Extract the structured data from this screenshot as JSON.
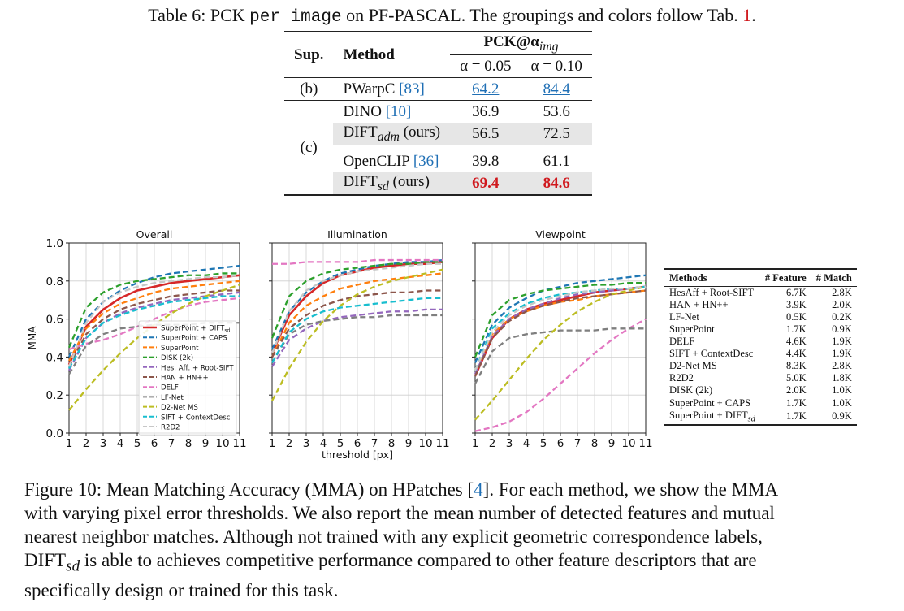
{
  "table_caption": {
    "prefix": "Table 6: PCK ",
    "mono": "per image",
    "middle": " on PF-PASCAL. The groupings and colors follow Tab. ",
    "ref": "1",
    "suffix": "."
  },
  "pck_table": {
    "col_sup": "Sup.",
    "col_method": "Method",
    "col_group": "PCK@α",
    "col_group_sub": "img",
    "alpha1": "α = 0.05",
    "alpha2": "α = 0.10",
    "rows": [
      {
        "sup": "(b)",
        "name": "PWarpC ",
        "ref": "[83]",
        "v1": "64.2",
        "v2": "84.4"
      },
      {
        "sup": "(c)",
        "name": "DINO ",
        "ref": "[10]",
        "v1": "36.9",
        "v2": "53.6"
      },
      {
        "name": "DIFT",
        "sub": "adm",
        "suffix": " (ours)",
        "v1": "56.5",
        "v2": "72.5"
      },
      {
        "name": "OpenCLIP ",
        "ref": "[36]",
        "v1": "39.8",
        "v2": "61.1"
      },
      {
        "name": "DIFT",
        "sub": "sd",
        "suffix": " (ours)",
        "v1": "69.4",
        "v2": "84.6"
      }
    ]
  },
  "figure": {
    "ylabel": "MMA",
    "xlabel": "threshold [px]",
    "yticks": [
      "0.0",
      "0.2",
      "0.4",
      "0.6",
      "0.8",
      "1.0"
    ],
    "xticks": [
      "1",
      "2",
      "3",
      "4",
      "5",
      "6",
      "7",
      "8",
      "9",
      "10",
      "11"
    ],
    "panel_titles": [
      "Overall",
      "Illumination",
      "Viewpoint"
    ]
  },
  "chart_data": [
    {
      "type": "line",
      "title": "Overall",
      "xlabel": "",
      "ylabel": "MMA",
      "x": [
        1,
        2,
        3,
        4,
        5,
        6,
        7,
        8,
        9,
        10,
        11
      ],
      "ylim": [
        0,
        1
      ],
      "grid": true,
      "legend": "lower-right",
      "series": [
        {
          "name": "SuperPoint + DIFTsd",
          "color": "#d62728",
          "values": [
            0.36,
            0.56,
            0.65,
            0.71,
            0.75,
            0.77,
            0.79,
            0.8,
            0.81,
            0.82,
            0.83
          ]
        },
        {
          "name": "SuperPoint + CAPS",
          "color": "#1f77b4",
          "values": [
            0.4,
            0.6,
            0.69,
            0.75,
            0.79,
            0.82,
            0.84,
            0.85,
            0.86,
            0.87,
            0.88
          ]
        },
        {
          "name": "SuperPoint",
          "color": "#ff7f0e",
          "values": [
            0.38,
            0.55,
            0.63,
            0.68,
            0.71,
            0.74,
            0.76,
            0.77,
            0.78,
            0.79,
            0.8
          ]
        },
        {
          "name": "DISK (2k)",
          "color": "#2ca02c",
          "values": [
            0.45,
            0.66,
            0.74,
            0.78,
            0.8,
            0.81,
            0.82,
            0.83,
            0.83,
            0.84,
            0.84
          ]
        },
        {
          "name": "Hes. Aff. + Root-SIFT",
          "color": "#9467bd",
          "values": [
            0.33,
            0.5,
            0.58,
            0.63,
            0.66,
            0.68,
            0.7,
            0.71,
            0.72,
            0.73,
            0.74
          ]
        },
        {
          "name": "HAN + HN++",
          "color": "#8c564b",
          "values": [
            0.35,
            0.52,
            0.6,
            0.65,
            0.68,
            0.7,
            0.72,
            0.73,
            0.74,
            0.75,
            0.75
          ]
        },
        {
          "name": "DELF",
          "color": "#e377c2",
          "values": [
            0.44,
            0.47,
            0.49,
            0.52,
            0.56,
            0.6,
            0.64,
            0.67,
            0.69,
            0.7,
            0.71
          ]
        },
        {
          "name": "LF-Net",
          "color": "#7f7f7f",
          "values": [
            0.31,
            0.46,
            0.52,
            0.55,
            0.56,
            0.57,
            0.57,
            0.57,
            0.58,
            0.58,
            0.58
          ]
        },
        {
          "name": "D2-Net MS",
          "color": "#bcbd22",
          "values": [
            0.12,
            0.23,
            0.33,
            0.42,
            0.5,
            0.57,
            0.63,
            0.68,
            0.72,
            0.75,
            0.78
          ]
        },
        {
          "name": "SIFT + ContextDesc",
          "color": "#17becf",
          "values": [
            0.34,
            0.5,
            0.58,
            0.62,
            0.65,
            0.67,
            0.69,
            0.7,
            0.71,
            0.72,
            0.72
          ]
        },
        {
          "name": "R2D2",
          "color": "#c7c7c7",
          "values": [
            0.35,
            0.58,
            0.69,
            0.74,
            0.77,
            0.79,
            0.8,
            0.81,
            0.82,
            0.82,
            0.83
          ]
        }
      ]
    },
    {
      "type": "line",
      "title": "Illumination",
      "xlabel": "threshold [px]",
      "ylabel": "",
      "x": [
        1,
        2,
        3,
        4,
        5,
        6,
        7,
        8,
        9,
        10,
        11
      ],
      "ylim": [
        0,
        1
      ],
      "grid": true,
      "series": [
        {
          "name": "SuperPoint + DIFTsd",
          "color": "#d62728",
          "values": [
            0.42,
            0.62,
            0.72,
            0.79,
            0.83,
            0.85,
            0.87,
            0.88,
            0.89,
            0.89,
            0.9
          ]
        },
        {
          "name": "SuperPoint + CAPS",
          "color": "#1f77b4",
          "values": [
            0.44,
            0.64,
            0.74,
            0.8,
            0.84,
            0.86,
            0.88,
            0.89,
            0.9,
            0.9,
            0.91
          ]
        },
        {
          "name": "SuperPoint",
          "color": "#ff7f0e",
          "values": [
            0.4,
            0.58,
            0.67,
            0.72,
            0.76,
            0.78,
            0.8,
            0.81,
            0.82,
            0.83,
            0.84
          ]
        },
        {
          "name": "DISK (2k)",
          "color": "#2ca02c",
          "values": [
            0.5,
            0.72,
            0.8,
            0.84,
            0.86,
            0.87,
            0.88,
            0.89,
            0.89,
            0.9,
            0.9
          ]
        },
        {
          "name": "Hes. Aff. + Root-SIFT",
          "color": "#9467bd",
          "values": [
            0.35,
            0.49,
            0.55,
            0.59,
            0.61,
            0.62,
            0.63,
            0.64,
            0.64,
            0.65,
            0.65
          ]
        },
        {
          "name": "HAN + HN++",
          "color": "#8c564b",
          "values": [
            0.4,
            0.55,
            0.62,
            0.67,
            0.7,
            0.72,
            0.73,
            0.74,
            0.74,
            0.75,
            0.75
          ]
        },
        {
          "name": "DELF",
          "color": "#e377c2",
          "values": [
            0.89,
            0.89,
            0.9,
            0.9,
            0.9,
            0.9,
            0.91,
            0.91,
            0.91,
            0.91,
            0.91
          ]
        },
        {
          "name": "LF-Net",
          "color": "#7f7f7f",
          "values": [
            0.37,
            0.52,
            0.57,
            0.59,
            0.6,
            0.61,
            0.61,
            0.62,
            0.62,
            0.62,
            0.62
          ]
        },
        {
          "name": "D2-Net MS",
          "color": "#bcbd22",
          "values": [
            0.17,
            0.34,
            0.48,
            0.59,
            0.67,
            0.73,
            0.77,
            0.8,
            0.82,
            0.84,
            0.86
          ]
        },
        {
          "name": "SIFT + ContextDesc",
          "color": "#17becf",
          "values": [
            0.37,
            0.53,
            0.6,
            0.64,
            0.66,
            0.67,
            0.68,
            0.69,
            0.7,
            0.71,
            0.71
          ]
        },
        {
          "name": "R2D2",
          "color": "#c7c7c7",
          "values": [
            0.42,
            0.64,
            0.75,
            0.8,
            0.83,
            0.85,
            0.86,
            0.87,
            0.88,
            0.89,
            0.89
          ]
        }
      ]
    },
    {
      "type": "line",
      "title": "Viewpoint",
      "xlabel": "",
      "ylabel": "",
      "x": [
        1,
        2,
        3,
        4,
        5,
        6,
        7,
        8,
        9,
        10,
        11
      ],
      "ylim": [
        0,
        1
      ],
      "grid": true,
      "series": [
        {
          "name": "SuperPoint + DIFTsd",
          "color": "#d62728",
          "values": [
            0.3,
            0.5,
            0.6,
            0.65,
            0.68,
            0.7,
            0.72,
            0.74,
            0.75,
            0.76,
            0.77
          ]
        },
        {
          "name": "SuperPoint + CAPS",
          "color": "#1f77b4",
          "values": [
            0.37,
            0.57,
            0.66,
            0.71,
            0.75,
            0.77,
            0.79,
            0.8,
            0.81,
            0.82,
            0.83
          ]
        },
        {
          "name": "SuperPoint",
          "color": "#ff7f0e",
          "values": [
            0.33,
            0.52,
            0.6,
            0.64,
            0.67,
            0.69,
            0.7,
            0.72,
            0.73,
            0.74,
            0.75
          ]
        },
        {
          "name": "DISK (2k)",
          "color": "#2ca02c",
          "values": [
            0.4,
            0.62,
            0.7,
            0.73,
            0.75,
            0.76,
            0.77,
            0.78,
            0.78,
            0.79,
            0.79
          ]
        },
        {
          "name": "Hes. Aff. + Root-SIFT",
          "color": "#9467bd",
          "values": [
            0.31,
            0.51,
            0.6,
            0.65,
            0.68,
            0.71,
            0.73,
            0.74,
            0.75,
            0.76,
            0.77
          ]
        },
        {
          "name": "HAN + HN++",
          "color": "#8c564b",
          "values": [
            0.3,
            0.5,
            0.59,
            0.64,
            0.67,
            0.69,
            0.71,
            0.72,
            0.73,
            0.74,
            0.75
          ]
        },
        {
          "name": "DELF",
          "color": "#e377c2",
          "values": [
            0.01,
            0.03,
            0.06,
            0.11,
            0.18,
            0.26,
            0.34,
            0.42,
            0.49,
            0.55,
            0.6
          ]
        },
        {
          "name": "LF-Net",
          "color": "#7f7f7f",
          "values": [
            0.26,
            0.43,
            0.5,
            0.52,
            0.53,
            0.54,
            0.54,
            0.54,
            0.55,
            0.55,
            0.55
          ]
        },
        {
          "name": "D2-Net MS",
          "color": "#bcbd22",
          "values": [
            0.07,
            0.17,
            0.28,
            0.39,
            0.49,
            0.57,
            0.64,
            0.69,
            0.73,
            0.75,
            0.77
          ]
        },
        {
          "name": "SIFT + ContextDesc",
          "color": "#17becf",
          "values": [
            0.33,
            0.55,
            0.63,
            0.68,
            0.71,
            0.73,
            0.74,
            0.75,
            0.76,
            0.76,
            0.77
          ]
        },
        {
          "name": "R2D2",
          "color": "#c7c7c7",
          "values": [
            0.33,
            0.53,
            0.62,
            0.67,
            0.7,
            0.72,
            0.74,
            0.75,
            0.76,
            0.76,
            0.77
          ]
        }
      ]
    }
  ],
  "feature_table": {
    "headers": [
      "Methods",
      "# Feature",
      "# Match"
    ],
    "rows": [
      {
        "m": "HesAff + Root-SIFT",
        "f": "6.7K",
        "n": "2.8K"
      },
      {
        "m": "HAN + HN++",
        "f": "3.9K",
        "n": "2.0K"
      },
      {
        "m": "LF-Net",
        "f": "0.5K",
        "n": "0.2K"
      },
      {
        "m": "SuperPoint",
        "f": "1.7K",
        "n": "0.9K"
      },
      {
        "m": "DELF",
        "f": "4.6K",
        "n": "1.9K"
      },
      {
        "m": "SIFT + ContextDesc",
        "f": "4.4K",
        "n": "1.9K"
      },
      {
        "m": "D2-Net MS",
        "f": "8.3K",
        "n": "2.8K"
      },
      {
        "m": "R2D2",
        "f": "5.0K",
        "n": "1.8K"
      },
      {
        "m": "DISK (2k)",
        "f": "2.0K",
        "n": "1.0K"
      },
      {
        "m": "SuperPoint + CAPS",
        "f": "1.7K",
        "n": "1.0K"
      },
      {
        "m": "SuperPoint + DIFT",
        "sub": "sd",
        "f": "1.7K",
        "n": "0.9K"
      }
    ]
  },
  "figure_caption": {
    "line1_a": "Figure 10: Mean Matching Accuracy (MMA) on HPatches [",
    "line1_ref": "4",
    "line1_b": "]. For each method, we show the MMA",
    "line2": "with varying pixel error thresholds. We also report the mean number of detected features and mutual",
    "line3": "nearest neighbor matches. Although not trained with any explicit geometric correspondence labels,",
    "line4_a": "DIFT",
    "line4_sub": "sd",
    "line4_b": " is able to achieves competitive performance compared to other feature descriptors that are",
    "line5": "specifically design or trained for this task."
  }
}
